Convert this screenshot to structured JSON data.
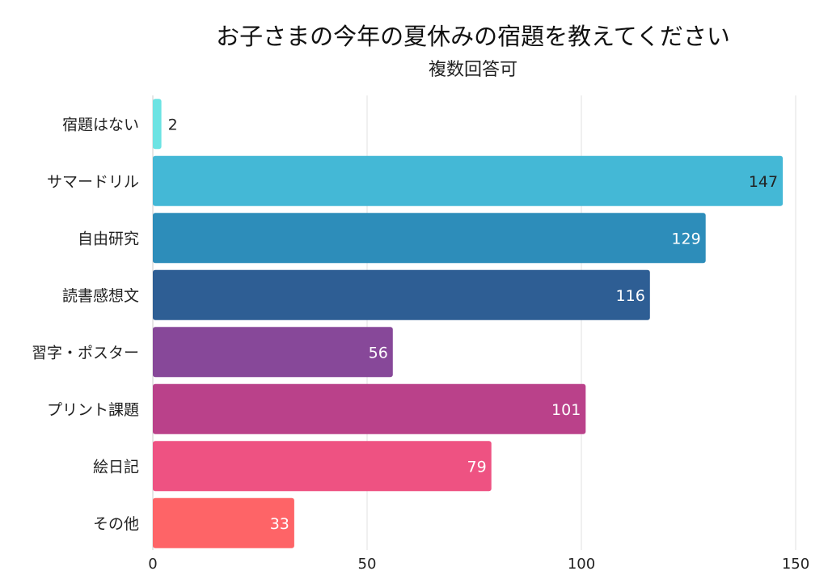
{
  "chart_data": {
    "type": "bar",
    "orientation": "horizontal",
    "title": "お子さまの今年の夏休みの宿題を教えてください",
    "subtitle": "複数回答可",
    "categories": [
      "宿題はない",
      "サマードリル",
      "自由研究",
      "読書感想文",
      "習字・ポスター",
      "プリント課題",
      "絵日記",
      "その他"
    ],
    "values": [
      2,
      147,
      129,
      116,
      56,
      101,
      79,
      33
    ],
    "colors": [
      "#6ce3e3",
      "#44b8d6",
      "#2d8dba",
      "#2e5e94",
      "#874899",
      "#ba418a",
      "#ee5282",
      "#fe6467"
    ],
    "xlim": [
      0,
      150
    ],
    "xticks": [
      0,
      50,
      100,
      150
    ],
    "xlabel": "",
    "ylabel": "",
    "grid": true
  }
}
